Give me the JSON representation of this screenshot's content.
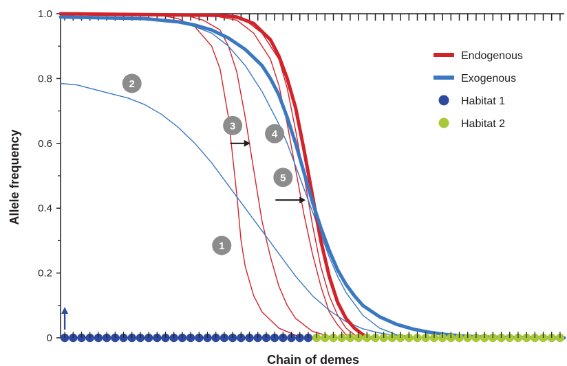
{
  "chart_data": {
    "type": "line",
    "title": "",
    "xlabel": "Chain of demes",
    "ylabel": "Allele frequency",
    "ylim": [
      0,
      1
    ],
    "xlim": [
      0,
      60
    ],
    "yticks": [
      {
        "value": 0,
        "label": "0"
      },
      {
        "value": 0.2,
        "label": "0.2"
      },
      {
        "value": 0.4,
        "label": "0.4"
      },
      {
        "value": 0.6,
        "label": "0.6"
      },
      {
        "value": 0.8,
        "label": "0.8"
      },
      {
        "value": 1.0,
        "label": "1.0"
      }
    ],
    "colors": {
      "endogenous": "#d2232a",
      "exogenous": "#3b78c2",
      "habitat1": "#2e4a9e",
      "habitat2": "#a8c83a",
      "badge": "#8c8c8c",
      "arrow": "#231f20",
      "axis": "#231f20"
    },
    "legend": {
      "position": "top-right",
      "entries": [
        {
          "label": "Endogenous",
          "kind": "line",
          "color": "#d2232a"
        },
        {
          "label": "Exogenous",
          "kind": "line",
          "color": "#3b78c2"
        },
        {
          "label": "Habitat 1",
          "kind": "dot",
          "color": "#2e4a9e"
        },
        {
          "label": "Habitat 2",
          "kind": "dot",
          "color": "#a8c83a"
        }
      ]
    },
    "habitats": {
      "count": 60,
      "habitat1_count": 30,
      "habitat1_label": "Habitat 1",
      "habitat2_label": "Habitat 2"
    },
    "series": [
      {
        "group": "endogenous",
        "emphasis": "thin",
        "x": [
          0,
          12,
          14,
          16,
          18,
          19,
          20,
          20.5,
          21,
          21.5,
          22,
          23,
          24,
          26,
          28,
          29.5
        ],
        "y": [
          1.0,
          0.995,
          0.985,
          0.96,
          0.9,
          0.83,
          0.68,
          0.56,
          0.44,
          0.3,
          0.22,
          0.13,
          0.08,
          0.03,
          0.008,
          0
        ]
      },
      {
        "group": "endogenous",
        "emphasis": "thin",
        "x": [
          0,
          15,
          17,
          19,
          20,
          21,
          22,
          23,
          24,
          25,
          26,
          27,
          28,
          30,
          32,
          33
        ],
        "y": [
          1.0,
          0.995,
          0.98,
          0.95,
          0.9,
          0.82,
          0.68,
          0.52,
          0.36,
          0.25,
          0.16,
          0.1,
          0.06,
          0.02,
          0.005,
          0
        ]
      },
      {
        "group": "endogenous",
        "emphasis": "thin",
        "x": [
          0,
          18,
          21,
          23,
          25,
          26,
          27,
          28,
          29,
          30,
          31,
          32,
          33,
          34,
          35
        ],
        "y": [
          1.0,
          0.995,
          0.98,
          0.94,
          0.86,
          0.78,
          0.66,
          0.52,
          0.38,
          0.26,
          0.16,
          0.08,
          0.04,
          0.01,
          0
        ]
      },
      {
        "group": "endogenous",
        "emphasis": "thin",
        "x": [
          0,
          19,
          22,
          24,
          26,
          27,
          28,
          29,
          30,
          31,
          32,
          33,
          34,
          35,
          35.5
        ],
        "y": [
          1.0,
          0.995,
          0.98,
          0.94,
          0.86,
          0.77,
          0.64,
          0.5,
          0.35,
          0.22,
          0.13,
          0.07,
          0.03,
          0.01,
          0
        ]
      },
      {
        "group": "endogenous",
        "emphasis": "thick",
        "x": [
          0,
          19,
          21,
          23,
          25,
          26,
          27,
          28,
          29,
          30,
          31,
          32,
          33,
          34,
          35,
          36,
          37
        ],
        "y": [
          1.0,
          0.995,
          0.99,
          0.97,
          0.92,
          0.87,
          0.8,
          0.71,
          0.58,
          0.44,
          0.3,
          0.19,
          0.11,
          0.06,
          0.03,
          0.01,
          0
        ]
      },
      {
        "group": "exogenous",
        "emphasis": "thin",
        "x": [
          0,
          2,
          5,
          8,
          10,
          12,
          14,
          16,
          18,
          20,
          22,
          24,
          26,
          28,
          30,
          32,
          34,
          36,
          38,
          40,
          42,
          44
        ],
        "y": [
          0.785,
          0.78,
          0.76,
          0.74,
          0.72,
          0.69,
          0.65,
          0.6,
          0.54,
          0.47,
          0.4,
          0.33,
          0.26,
          0.19,
          0.13,
          0.085,
          0.05,
          0.028,
          0.015,
          0.007,
          0.003,
          0.001
        ]
      },
      {
        "group": "exogenous",
        "emphasis": "thin",
        "x": [
          0,
          10,
          14,
          16,
          18,
          20,
          22,
          24,
          26,
          27,
          28,
          29,
          30,
          31,
          32,
          33,
          34,
          36,
          38,
          40,
          42
        ],
        "y": [
          0.99,
          0.985,
          0.975,
          0.96,
          0.94,
          0.9,
          0.84,
          0.76,
          0.66,
          0.6,
          0.53,
          0.46,
          0.39,
          0.32,
          0.25,
          0.19,
          0.14,
          0.07,
          0.03,
          0.01,
          0.003
        ]
      },
      {
        "group": "exogenous",
        "emphasis": "thick",
        "x": [
          0,
          10,
          14,
          16,
          18,
          20,
          22,
          24,
          25,
          26,
          27,
          28,
          29,
          30,
          31,
          32,
          33,
          34,
          35,
          36,
          38,
          40,
          42,
          44,
          46,
          48,
          50,
          54,
          60
        ],
        "y": [
          0.99,
          0.985,
          0.975,
          0.965,
          0.95,
          0.925,
          0.89,
          0.84,
          0.8,
          0.75,
          0.68,
          0.6,
          0.51,
          0.42,
          0.34,
          0.27,
          0.21,
          0.165,
          0.13,
          0.1,
          0.065,
          0.042,
          0.027,
          0.017,
          0.01,
          0.006,
          0.003,
          0.001,
          0
        ]
      }
    ],
    "annotations": [
      {
        "label": "1",
        "x": 19.2,
        "y": 0.285
      },
      {
        "label": "2",
        "x": 8.5,
        "y": 0.785
      },
      {
        "label": "3",
        "x": 20.5,
        "y": 0.655
      },
      {
        "label": "4",
        "x": 25.5,
        "y": 0.63
      },
      {
        "label": "5",
        "x": 26.5,
        "y": 0.495
      }
    ],
    "arrows": [
      {
        "x_start": 20.2,
        "x_end": 22.6,
        "y": 0.6
      },
      {
        "x_start": 25.6,
        "x_end": 29.2,
        "y": 0.425
      }
    ]
  }
}
